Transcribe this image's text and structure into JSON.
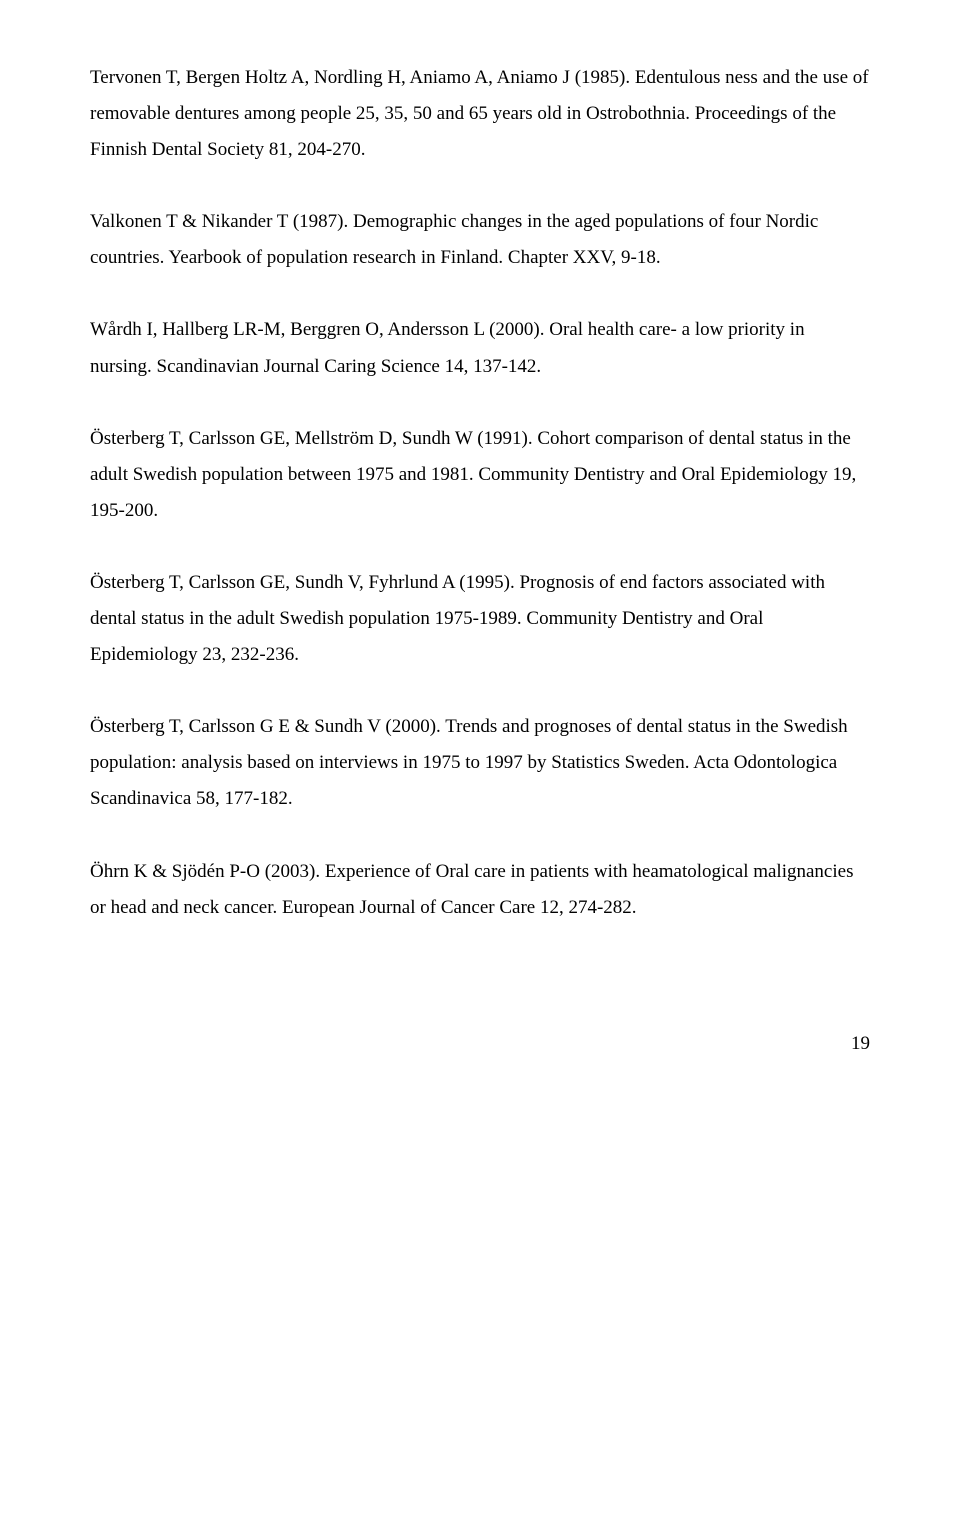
{
  "references": [
    "Tervonen T, Bergen Holtz A, Nordling H, Aniamo A, Aniamo J (1985). Edentulous ness and the use of removable dentures among people 25, 35, 50 and 65 years old in Ostrobothnia. Proceedings of the Finnish Dental Society 81, 204-270.",
    "Valkonen T & Nikander T (1987). Demographic changes in the aged populations of four Nordic countries. Yearbook of population research in Finland. Chapter XXV, 9-18.",
    "Wårdh I, Hallberg LR-M, Berggren O, Andersson L (2000). Oral health care- a low priority in nursing. Scandinavian Journal Caring Science 14, 137-142.",
    "Österberg T, Carlsson GE, Mellström D, Sundh W (1991). Cohort comparison of dental status in the adult Swedish population between 1975 and 1981. Community Dentistry and Oral Epidemiology 19, 195-200.",
    "Österberg T, Carlsson GE, Sundh V, Fyhrlund A (1995). Prognosis of end factors associated with dental status in the adult Swedish population 1975-1989. Community Dentistry and Oral Epidemiology 23, 232-236.",
    "Österberg T, Carlsson G E & Sundh V (2000). Trends and prognoses of dental status in the Swedish population: analysis based on interviews in 1975 to 1997 by Statistics Sweden. Acta Odontologica Scandinavica 58, 177-182.",
    "Öhrn K & Sjödén P-O (2003). Experience of Oral care in patients with heamatological malignancies or head and neck cancer. European Journal of Cancer Care 12, 274-282."
  ],
  "page_number": "19"
}
